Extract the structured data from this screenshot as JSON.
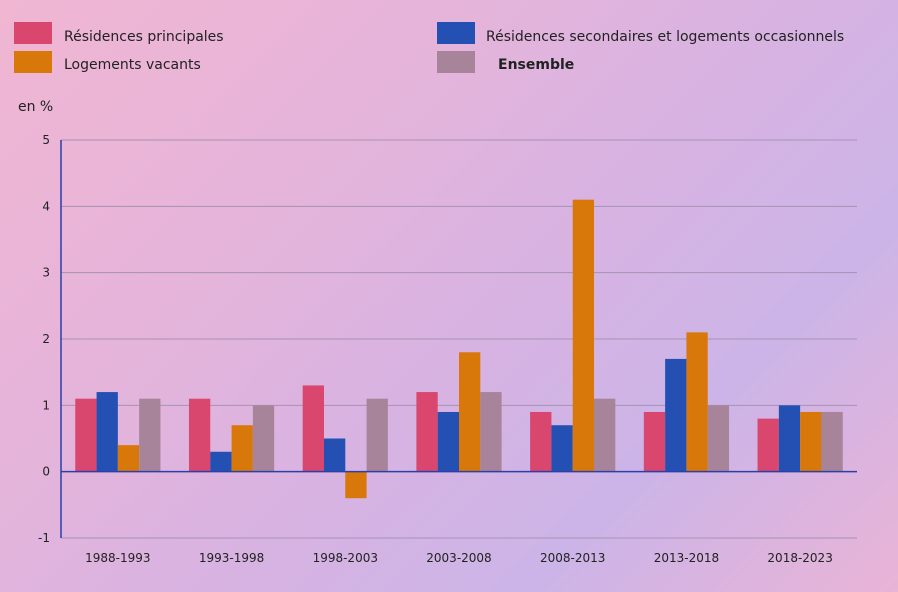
{
  "chart_data": {
    "type": "bar",
    "unit_label": "en %",
    "categories": [
      "1988-1993",
      "1993-1998",
      "1998-2003",
      "2003-2008",
      "2008-2013",
      "2013-2018",
      "2018-2023"
    ],
    "series": [
      {
        "name": "Résidences principales",
        "color": "#d9466e",
        "values": [
          1.1,
          1.1,
          1.3,
          1.2,
          0.9,
          0.9,
          0.8
        ]
      },
      {
        "name": "Résidences secondaires et logements occasionnels",
        "color": "#2450b4",
        "values": [
          1.2,
          0.3,
          0.5,
          0.9,
          0.7,
          1.7,
          1.0
        ]
      },
      {
        "name": "Logements vacants",
        "color": "#d8780a",
        "values": [
          0.4,
          0.7,
          -0.4,
          1.8,
          4.1,
          2.1,
          0.9
        ]
      },
      {
        "name": "Ensemble",
        "color": "#a7849a",
        "values": [
          1.1,
          1.0,
          1.1,
          1.2,
          1.1,
          1.0,
          0.9
        ]
      }
    ],
    "ylim": [
      -1,
      5
    ],
    "yticks": [
      -1,
      0,
      1,
      2,
      3,
      4,
      5
    ],
    "grid": true,
    "legend_position": "top"
  }
}
